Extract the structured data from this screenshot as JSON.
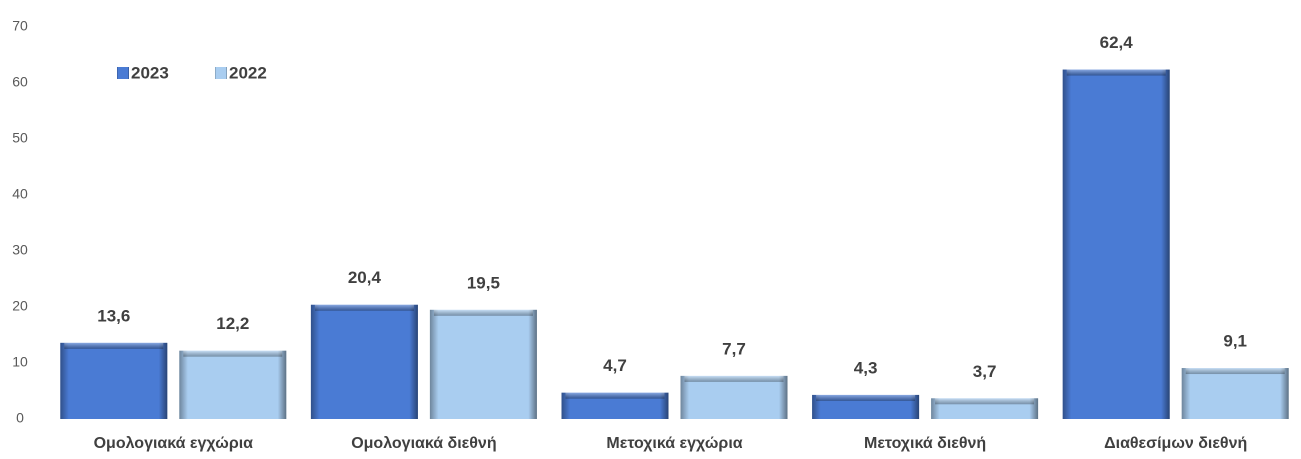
{
  "chart_data": {
    "type": "bar",
    "categories": [
      "Ομολογιακά εγχώρια",
      "Ομολογιακά διεθνή",
      "Μετοχικά εγχώρια",
      "Μετοχικά διεθνή",
      "Διαθεσίμων διεθνή"
    ],
    "series": [
      {
        "name": "2023",
        "color": "#4a7bd4",
        "values": [
          13.6,
          20.4,
          4.7,
          4.3,
          62.4
        ],
        "value_labels": [
          "13,6",
          "20,4",
          "4,7",
          "4,3",
          "62,4"
        ]
      },
      {
        "name": "2022",
        "color": "#a9cdf0",
        "values": [
          12.2,
          19.5,
          7.7,
          3.7,
          9.1
        ],
        "value_labels": [
          "12,2",
          "19,5",
          "7,7",
          "3,7",
          "9,1"
        ]
      }
    ],
    "ylim": [
      0,
      70
    ],
    "yticks": [
      0,
      10,
      20,
      30,
      40,
      50,
      60,
      70
    ],
    "grid": false,
    "legend": "top-left"
  }
}
